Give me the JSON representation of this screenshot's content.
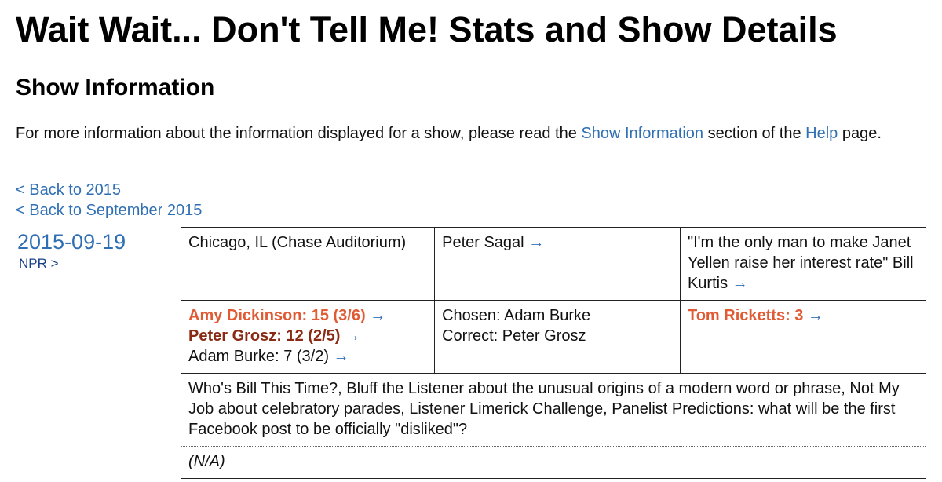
{
  "page": {
    "title": "Wait Wait... Don't Tell Me! Stats and Show Details",
    "section_title": "Show Information",
    "intro": {
      "before": "For more information about the information displayed for a show, please read the ",
      "link1": "Show Information",
      "middle": " section of the ",
      "link2": "Help",
      "after": " page."
    },
    "back_links": [
      "< Back to 2015",
      "< Back to September 2015"
    ]
  },
  "show": {
    "date": "2015-09-19",
    "npr_link": "NPR >",
    "location": "Chicago, IL (Chase Auditorium)",
    "host": "Peter Sagal",
    "quote": "\"I'm the only man to make Janet Yellen raise her interest rate\"",
    "scorekeeper": "Bill Kurtis",
    "panelists": [
      {
        "name": "Amy Dickinson",
        "score": "15 (3/6)"
      },
      {
        "name": "Peter Grosz",
        "score": "12 (2/5)"
      },
      {
        "name": "Adam Burke",
        "score": "7 (3/2)"
      }
    ],
    "bluff": {
      "chosen": "Chosen: Adam Burke",
      "correct": "Correct: Peter Grosz"
    },
    "guest": {
      "name": "Tom Ricketts",
      "score": "3"
    },
    "segments": "Who's Bill This Time?, Bluff the Listener about the unusual origins of a modern word or phrase, Not My Job about celebratory parades, Listener Limerick Challenge, Panelist Predictions: what will be the first Facebook post to be officially \"disliked\"?",
    "notes": "(N/A)",
    "arrow": "→"
  }
}
